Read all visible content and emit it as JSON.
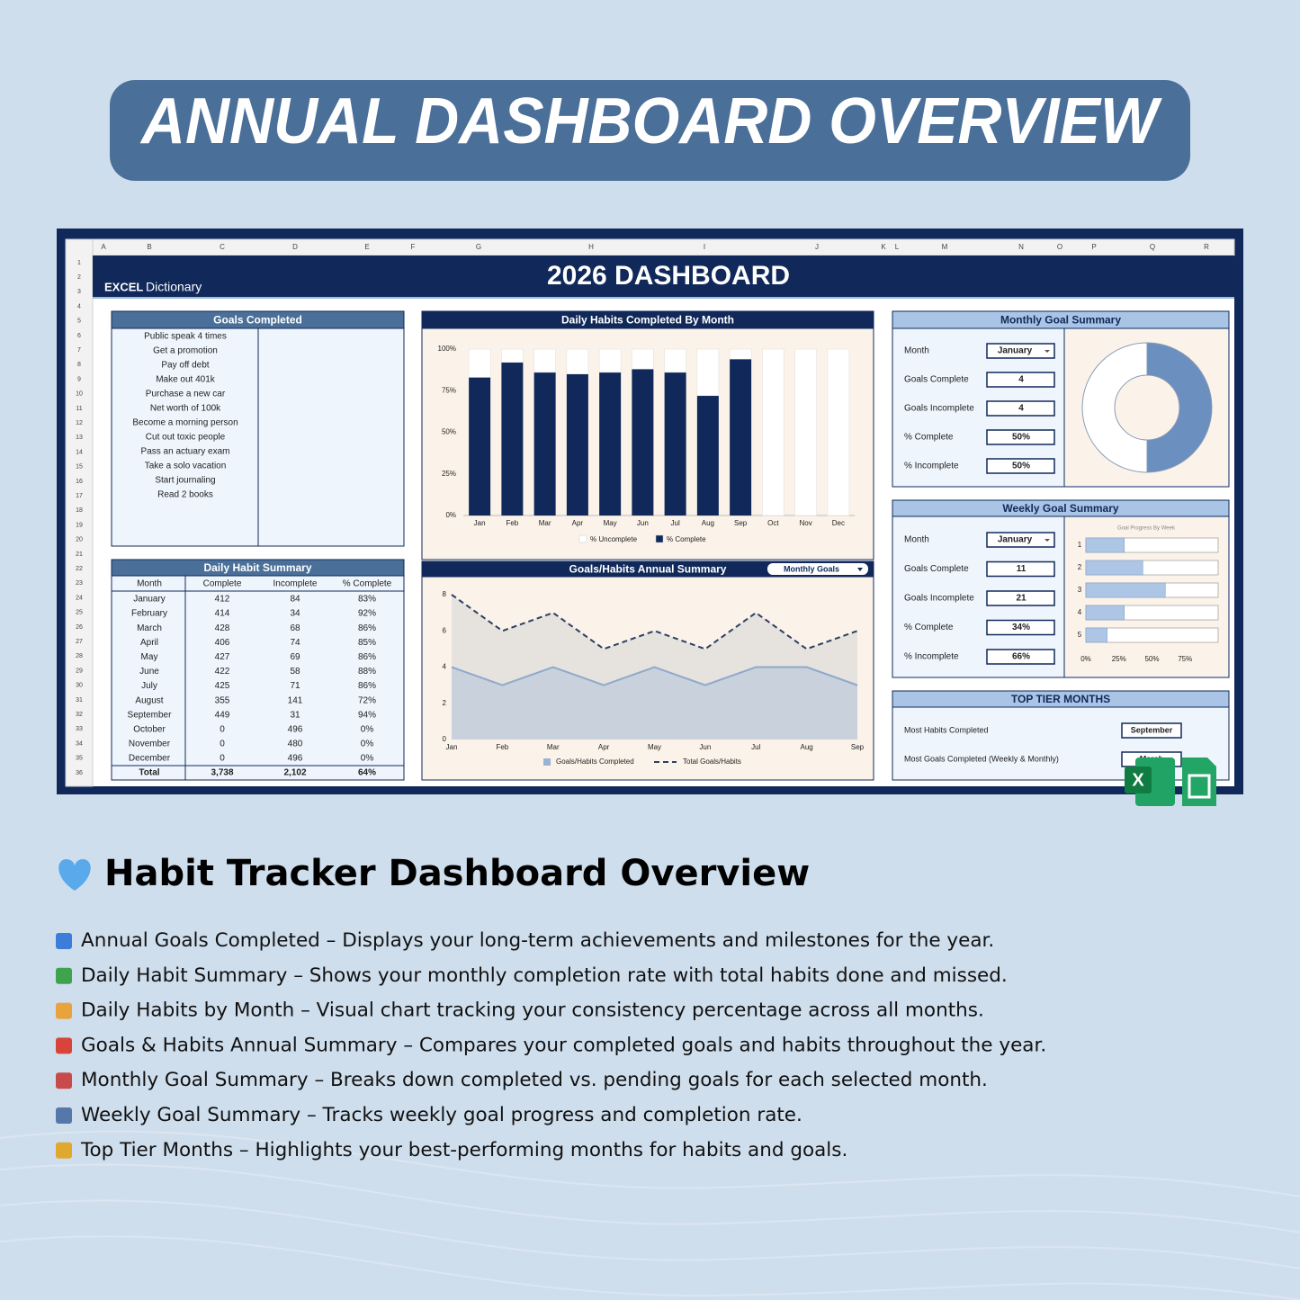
{
  "header": {
    "title": "ANNUAL DASHBOARD OVERVIEW"
  },
  "sheet": {
    "column_letters": [
      "A",
      "B",
      "C",
      "D",
      "E",
      "F",
      "G",
      "H",
      "I",
      "J",
      "K",
      "L",
      "M",
      "N",
      "O",
      "P",
      "Q",
      "R"
    ],
    "row_numbers": [
      1,
      2,
      3,
      4,
      5,
      6,
      7,
      8,
      9,
      10,
      11,
      12,
      13,
      14,
      15,
      16,
      17,
      18,
      19,
      20,
      21,
      22,
      23,
      24,
      25,
      26,
      27,
      28,
      29,
      30,
      31,
      32,
      33,
      34,
      35,
      36
    ],
    "brand_mark": "EXCEL",
    "brand_name": "Dictionary",
    "title": "2026 DASHBOARD"
  },
  "goals": {
    "title": "Goals Completed",
    "items": [
      "Public speak 4 times",
      "Get a promotion",
      "Pay off debt",
      "Make out 401k",
      "Purchase a new car",
      "Net worth of 100k",
      "Become a morning person",
      "Cut out toxic people",
      "Pass an actuary exam",
      "Take a solo vacation",
      "Start journaling",
      "Read 2 books"
    ]
  },
  "habit_summary": {
    "title": "Daily Habit Summary",
    "columns": [
      "Month",
      "Complete",
      "Incomplete",
      "% Complete"
    ],
    "rows": [
      [
        "January",
        412,
        84,
        "83%"
      ],
      [
        "February",
        414,
        34,
        "92%"
      ],
      [
        "March",
        428,
        68,
        "86%"
      ],
      [
        "April",
        406,
        74,
        "85%"
      ],
      [
        "May",
        427,
        69,
        "86%"
      ],
      [
        "June",
        422,
        58,
        "88%"
      ],
      [
        "July",
        425,
        71,
        "86%"
      ],
      [
        "August",
        355,
        141,
        "72%"
      ],
      [
        "September",
        449,
        31,
        "94%"
      ],
      [
        "October",
        0,
        496,
        "0%"
      ],
      [
        "November",
        0,
        480,
        "0%"
      ],
      [
        "December",
        0,
        496,
        "0%"
      ]
    ],
    "total": [
      "Total",
      "3,738",
      "2,102",
      "64%"
    ]
  },
  "bar_chart": {
    "type": "bar",
    "title": "Daily Habits Completed By Month",
    "categories": [
      "Jan",
      "Feb",
      "Mar",
      "Apr",
      "May",
      "Jun",
      "Jul",
      "Aug",
      "Sep",
      "Oct",
      "Nov",
      "Dec"
    ],
    "series": [
      {
        "name": "% Uncomplete",
        "color": "#ffffff",
        "values": [
          17,
          8,
          14,
          15,
          14,
          12,
          14,
          28,
          6,
          100,
          100,
          100
        ]
      },
      {
        "name": "% Complete",
        "color": "#10295a",
        "values": [
          83,
          92,
          86,
          85,
          86,
          88,
          86,
          72,
          94,
          0,
          0,
          0
        ]
      }
    ],
    "ylim": [
      0,
      100
    ],
    "yticks": [
      {
        "value": 0,
        "label": "0%"
      },
      {
        "value": 25,
        "label": "25%"
      },
      {
        "value": 50,
        "label": "50%"
      },
      {
        "value": 75,
        "label": "75%"
      },
      {
        "value": 100,
        "label": "100%"
      }
    ]
  },
  "area_chart": {
    "type": "area",
    "title": "Goals/Habits Annual Summary",
    "selector": "Monthly Goals",
    "categories": [
      "Jan",
      "Feb",
      "Mar",
      "Apr",
      "May",
      "Jun",
      "Jul",
      "Aug",
      "Sep"
    ],
    "series": [
      {
        "name": "Goals/Habits Completed",
        "color": "#8fa9cc",
        "values": [
          4,
          3,
          4,
          3,
          4,
          3,
          4,
          4,
          3
        ]
      },
      {
        "name": "Total Goals/Habits",
        "color": "#2d3f63",
        "values": [
          8,
          6,
          7,
          5,
          6,
          5,
          7,
          5,
          6
        ]
      }
    ],
    "ylim": [
      0,
      8
    ],
    "yticks": [
      0,
      2,
      4,
      6,
      8
    ]
  },
  "monthly": {
    "title": "Monthly Goal Summary",
    "fields": [
      {
        "label": "Month",
        "value": "January"
      },
      {
        "label": "Goals Complete",
        "value": 4
      },
      {
        "label": "Goals Incomplete",
        "value": 4
      },
      {
        "label": "% Complete",
        "value": "50%"
      },
      {
        "label": "% Incomplete",
        "value": "50%"
      }
    ],
    "donut": {
      "type": "pie",
      "values": [
        50,
        50
      ],
      "colors": [
        "#6b8fbf",
        "#ffffff"
      ]
    }
  },
  "weekly": {
    "title": "Weekly Goal Summary",
    "fields": [
      {
        "label": "Month",
        "value": "January"
      },
      {
        "label": "Goals Complete",
        "value": 11
      },
      {
        "label": "Goals Incomplete",
        "value": 21
      },
      {
        "label": "% Complete",
        "value": "34%"
      },
      {
        "label": "% Incomplete",
        "value": "66%"
      }
    ],
    "chart": {
      "type": "bar",
      "title": "Goal Progress By Week",
      "categories": [
        "1",
        "2",
        "3",
        "4",
        "5"
      ],
      "values": [
        29,
        43,
        60,
        29,
        16
      ],
      "color": "#aec6e6",
      "xlim": [
        0,
        100
      ],
      "xticks": [
        {
          "value": 0,
          "label": "0%"
        },
        {
          "value": 25,
          "label": "25%"
        },
        {
          "value": 50,
          "label": "50%"
        },
        {
          "value": 75,
          "label": "75%"
        }
      ]
    }
  },
  "top_tier": {
    "title": "TOP TIER MONTHS",
    "rows": [
      {
        "label": "Most Habits Completed",
        "value": "September"
      },
      {
        "label": "Most Goals Completed (Weekly & Monthly)",
        "value": "March"
      }
    ]
  },
  "overview": {
    "title": "Habit Tracker Dashboard Overview",
    "items": [
      "Annual Goals Completed – Displays your long-term achievements and milestones for the year.",
      "Daily Habit Summary – Shows your monthly completion rate with total habits done and missed.",
      "Daily Habits by Month – Visual chart tracking your consistency percentage across all months.",
      "Goals & Habits Annual Summary – Compares your completed goals and habits throughout the year.",
      "Monthly Goal Summary – Breaks down completed vs. pending goals for each selected month.",
      "Weekly Goal Summary – Tracks weekly goal progress and completion rate.",
      "Top Tier Months – Highlights your best-performing months for habits and goals."
    ]
  }
}
